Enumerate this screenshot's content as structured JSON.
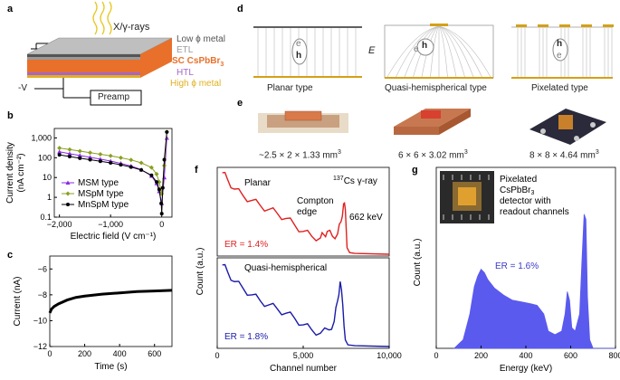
{
  "panels": {
    "a": {
      "label": "a",
      "rays": "X/γ-rays",
      "layers": [
        "Low ϕ metal",
        "ETL",
        "SC CsPbBr",
        "HTL",
        "High ϕ metal"
      ],
      "layer_sub": "3",
      "bias": "-V",
      "preamp": "Preamp",
      "colors": {
        "low_metal": "#555555",
        "etl": "#9a9a9a",
        "csp": "#e8702a",
        "htl": "#a565c9",
        "high_metal": "#e0b020"
      }
    },
    "b": {
      "label": "b"
    },
    "c": {
      "label": "c"
    },
    "d": {
      "label": "d",
      "types": [
        "Planar type",
        "Quasi-hemispherical type",
        "Pixelated type"
      ],
      "field": "E",
      "e": "e",
      "h": "h"
    },
    "e": {
      "label": "e",
      "dims": [
        "~2.5 × 2 × 1.33 mm",
        "6 × 6 × 3.02 mm",
        "8 × 8 × 4.64 mm"
      ],
      "dim_sup": "3"
    },
    "f": {
      "label": "f"
    },
    "g": {
      "label": "g"
    }
  },
  "chart_data": [
    {
      "id": "b",
      "type": "line",
      "xlabel": "Electric field (V cm⁻¹)",
      "ylabel_line1": "Current density",
      "ylabel_line2": "(nA cm⁻²)",
      "xlim": [
        -2100,
        200
      ],
      "ylim": [
        0.1,
        3000
      ],
      "yscale": "log",
      "xticks": [
        "−2,000",
        "−1,000",
        "0"
      ],
      "xtick_values": [
        -2000,
        -1000,
        0
      ],
      "yticks": [
        "0.1",
        "1",
        "10",
        "100",
        "1,000"
      ],
      "ytick_values": [
        0.1,
        1,
        10,
        100,
        1000
      ],
      "series": [
        {
          "name": "MSM type",
          "color": "#8a2be2",
          "marker": "triangle",
          "x": [
            -2000,
            -1800,
            -1600,
            -1400,
            -1200,
            -1000,
            -800,
            -600,
            -400,
            -200,
            -100,
            -50,
            0,
            50,
            100
          ],
          "y": [
            200,
            160,
            130,
            105,
            85,
            68,
            52,
            38,
            25,
            12,
            5,
            2,
            0.5,
            10,
            1000
          ]
        },
        {
          "name": "MSpM type",
          "color": "#8aa020",
          "marker": "diamond",
          "x": [
            -2000,
            -1800,
            -1600,
            -1400,
            -1200,
            -1000,
            -800,
            -600,
            -400,
            -200,
            -100,
            -50,
            0,
            50,
            100
          ],
          "y": [
            310,
            260,
            215,
            180,
            150,
            125,
            100,
            78,
            55,
            32,
            15,
            6,
            1.5,
            40,
            2000
          ]
        },
        {
          "name": "MnSpM type",
          "color": "#000000",
          "marker": "circle",
          "x": [
            -2000,
            -1800,
            -1600,
            -1400,
            -1200,
            -1000,
            -800,
            -600,
            -400,
            -200,
            -100,
            -50,
            -10,
            0,
            20,
            50,
            100
          ],
          "y": [
            140,
            115,
            95,
            80,
            66,
            55,
            44,
            34,
            24,
            13,
            6,
            2.5,
            0.5,
            0.15,
            3,
            80,
            2000
          ]
        }
      ]
    },
    {
      "id": "c",
      "type": "line",
      "xlabel": "Time (s)",
      "ylabel": "Current (nA)",
      "xlim": [
        0,
        700
      ],
      "ylim": [
        -12,
        -5
      ],
      "xticks": [
        "0",
        "200",
        "400",
        "600"
      ],
      "xtick_values": [
        0,
        200,
        400,
        600
      ],
      "yticks": [
        "−6",
        "−8",
        "−10",
        "−12"
      ],
      "ytick_values": [
        -6,
        -8,
        -10,
        -12
      ],
      "series": [
        {
          "color": "#000000",
          "x": [
            0,
            10,
            25,
            50,
            100,
            150,
            200,
            300,
            400,
            500,
            600,
            700
          ],
          "y": [
            -9.4,
            -9.1,
            -8.9,
            -8.7,
            -8.4,
            -8.2,
            -8.1,
            -7.95,
            -7.85,
            -7.75,
            -7.7,
            -7.65
          ]
        }
      ]
    },
    {
      "id": "f",
      "type": "line",
      "xlabel": "Channel number",
      "ylabel": "Count (a.u.)",
      "xlim": [
        0,
        10000
      ],
      "xticks": [
        "0",
        "5,000",
        "10,000"
      ],
      "xtick_values": [
        0,
        5000,
        10000
      ],
      "source": "Cs γ-ray",
      "source_sup": "137",
      "series": [
        {
          "name": "Planar",
          "color": "#e02020",
          "er": "ER = 1.4%",
          "annotations": [
            "Compton",
            "edge",
            "662 keV"
          ],
          "x": [
            300,
            600,
            1000,
            1500,
            2000,
            2500,
            3000,
            3500,
            4000,
            4500,
            5000,
            5500,
            6000,
            6200,
            6400,
            6700,
            7000,
            7200,
            7350,
            7450,
            7550,
            7700,
            8000,
            10000
          ],
          "y": [
            1.0,
            0.92,
            0.8,
            0.72,
            0.66,
            0.6,
            0.55,
            0.5,
            0.44,
            0.36,
            0.28,
            0.22,
            0.2,
            0.24,
            0.28,
            0.22,
            0.25,
            0.4,
            0.62,
            0.55,
            0.08,
            0.02,
            0.01,
            0.0
          ]
        },
        {
          "name": "Quasi-hemispherical",
          "color": "#1a1aa8",
          "er": "ER = 1.8%",
          "x": [
            300,
            600,
            1000,
            1500,
            2000,
            2500,
            3000,
            3500,
            4000,
            4500,
            5000,
            5500,
            6000,
            6500,
            6800,
            7000,
            7150,
            7300,
            7450,
            7600,
            8000,
            10000
          ],
          "y": [
            0.98,
            0.9,
            0.78,
            0.7,
            0.62,
            0.55,
            0.5,
            0.45,
            0.4,
            0.34,
            0.26,
            0.2,
            0.16,
            0.2,
            0.3,
            0.55,
            0.78,
            0.5,
            0.08,
            0.02,
            0.01,
            0.0
          ]
        }
      ]
    },
    {
      "id": "g",
      "type": "area",
      "xlabel": "Energy (keV)",
      "ylabel": "Count (a.u.)",
      "xlim": [
        0,
        800
      ],
      "xticks": [
        "0",
        "200",
        "400",
        "600",
        "800"
      ],
      "xtick_values": [
        0,
        200,
        400,
        600,
        800
      ],
      "inset_text": [
        "Pixelated",
        "CsPbBr",
        "detector with",
        "readout channels"
      ],
      "inset_sub": "3",
      "er": "ER = 1.6%",
      "color": "#5a5aee",
      "series": [
        {
          "x": [
            80,
            120,
            150,
            170,
            185,
            200,
            215,
            230,
            260,
            300,
            340,
            380,
            420,
            450,
            480,
            500,
            530,
            560,
            575,
            585,
            595,
            605,
            620,
            640,
            650,
            660,
            668,
            675,
            685,
            700,
            800
          ],
          "y": [
            0.0,
            0.05,
            0.2,
            0.36,
            0.42,
            0.46,
            0.44,
            0.4,
            0.35,
            0.31,
            0.28,
            0.27,
            0.26,
            0.25,
            0.2,
            0.1,
            0.08,
            0.1,
            0.2,
            0.33,
            0.28,
            0.12,
            0.1,
            0.2,
            0.5,
            0.78,
            0.75,
            0.3,
            0.05,
            0.0,
            0.0
          ]
        }
      ]
    }
  ]
}
